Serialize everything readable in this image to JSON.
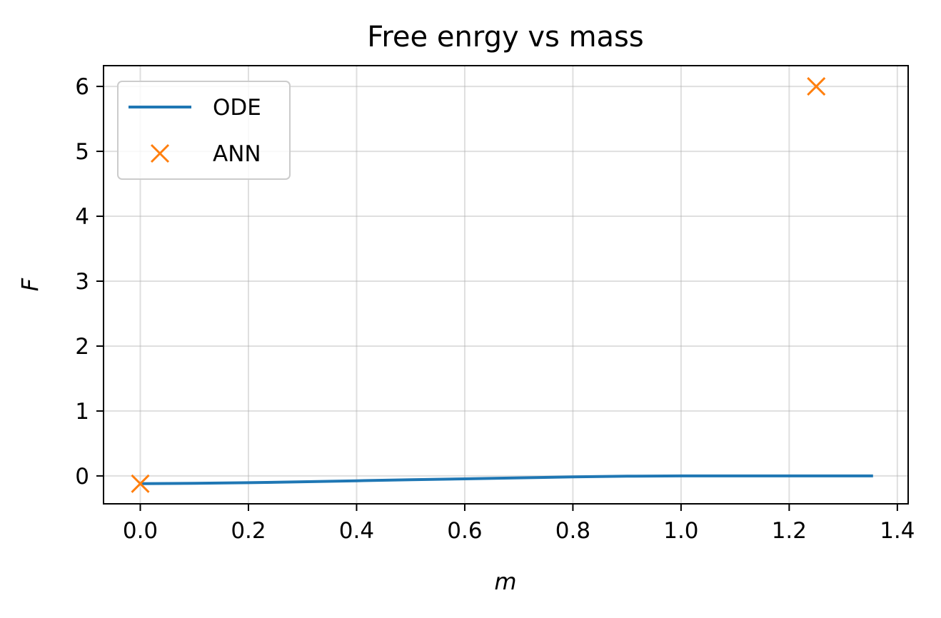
{
  "chart_data": {
    "type": "line",
    "title": "Free enrgy vs mass",
    "xlabel": "m",
    "ylabel": "F",
    "xlim": [
      -0.068,
      1.42
    ],
    "ylim": [
      -0.43,
      6.32
    ],
    "xticks": [
      "0.0",
      "0.2",
      "0.4",
      "0.6",
      "0.8",
      "1.0",
      "1.2",
      "1.4"
    ],
    "yticks": [
      "0",
      "1",
      "2",
      "3",
      "4",
      "5",
      "6"
    ],
    "grid": true,
    "legend_position": "upper-left",
    "series": [
      {
        "name": "ODE",
        "style": "line",
        "color": "#1f77b4",
        "x": [
          0.0,
          0.1,
          0.2,
          0.3,
          0.4,
          0.5,
          0.6,
          0.7,
          0.8,
          0.9,
          1.0,
          1.1,
          1.2,
          1.3,
          1.355
        ],
        "y": [
          -0.12,
          -0.115,
          -0.105,
          -0.09,
          -0.075,
          -0.06,
          -0.045,
          -0.03,
          -0.015,
          -0.005,
          0.0,
          0.0,
          0.0,
          0.0,
          0.0
        ]
      },
      {
        "name": "ANN",
        "style": "marker-x",
        "color": "#ff7f0e",
        "x": [
          0.0,
          1.25
        ],
        "y": [
          -0.12,
          6.0
        ]
      }
    ]
  }
}
